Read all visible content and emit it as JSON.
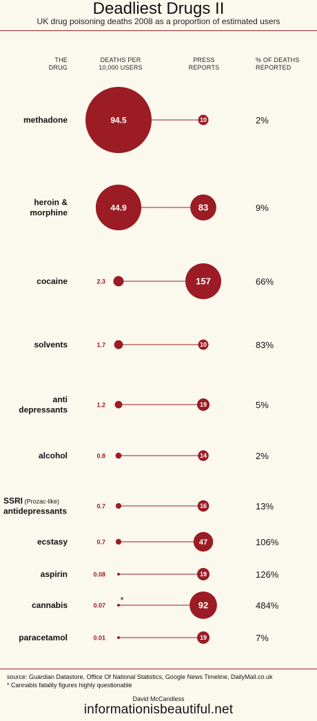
{
  "title": "Deadliest Drugs II",
  "subtitle": "UK drug poisoning deaths 2008 as a proportion of estimated users",
  "headers": {
    "drug_line1": "THE",
    "drug_line2": "DRUG",
    "deaths_line1": "DEATHS PER",
    "deaths_line2": "10,000 USERS",
    "press_line1": "PRESS",
    "press_line2": "REPORTS",
    "pct_line1": "% OF DEATHS",
    "pct_line2": "REPORTED"
  },
  "colors": {
    "accent": "#9b1c24",
    "background": "#fbf8ee",
    "text": "#111111"
  },
  "chart_data": {
    "type": "table",
    "columns": [
      "THE DRUG",
      "DEATHS PER 10,000 USERS",
      "PRESS REPORTS",
      "% OF DEATHS REPORTED"
    ],
    "rows": [
      {
        "drug": [
          "methadone"
        ],
        "note": "",
        "deaths": "94.5",
        "press": "10",
        "pct": "2%",
        "asterisk": ""
      },
      {
        "drug": [
          "heroin &",
          "morphine"
        ],
        "note": "",
        "deaths": "44.9",
        "press": "83",
        "pct": "9%",
        "asterisk": ""
      },
      {
        "drug": [
          "cocaine"
        ],
        "note": "",
        "deaths": "2.3",
        "press": "157",
        "pct": "66%",
        "asterisk": ""
      },
      {
        "drug": [
          "solvents"
        ],
        "note": "",
        "deaths": "1.7",
        "press": "10",
        "pct": "83%",
        "asterisk": ""
      },
      {
        "drug": [
          "anti",
          "depressants"
        ],
        "note": "",
        "deaths": "1.2",
        "press": "19",
        "pct": "5%",
        "asterisk": ""
      },
      {
        "drug": [
          "alcohol"
        ],
        "note": "",
        "deaths": "0.8",
        "press": "14",
        "pct": "2%",
        "asterisk": ""
      },
      {
        "drug": [
          "SSRI",
          "antidepressants"
        ],
        "note": "(Prozac-like)",
        "deaths": "0.7",
        "press": "16",
        "pct": "13%",
        "asterisk": ""
      },
      {
        "drug": [
          "ecstasy"
        ],
        "note": "",
        "deaths": "0.7",
        "press": "47",
        "pct": "106%",
        "asterisk": ""
      },
      {
        "drug": [
          "aspirin"
        ],
        "note": "",
        "deaths": "0.08",
        "press": "19",
        "pct": "126%",
        "asterisk": ""
      },
      {
        "drug": [
          "cannabis"
        ],
        "note": "",
        "deaths": "0.07",
        "press": "92",
        "pct": "484%",
        "asterisk": "*"
      },
      {
        "drug": [
          "paracetamol"
        ],
        "note": "",
        "deaths": "0.01",
        "press": "19",
        "pct": "7%",
        "asterisk": ""
      }
    ]
  },
  "footer": {
    "source": "source: Guardian Datastore, Office Of National Statistics, Google News Timeline, DailyMail.co.uk",
    "note": "* Cannabis fatality figures highly questionable",
    "author": "David McCandless",
    "brand": "informationisbeautiful.net"
  }
}
